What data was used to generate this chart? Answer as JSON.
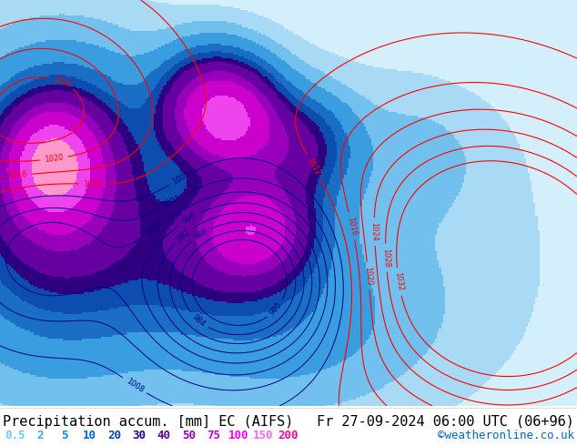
{
  "title_left": "Precipitation accum. [mm] EC (AIFS)",
  "title_right": "Fr 27-09-2024 06:00 UTC (06+96)",
  "credit": "©weatheronline.co.uk",
  "colorbar_values": [
    0.5,
    2,
    5,
    10,
    20,
    30,
    40,
    50,
    75,
    100,
    150,
    200
  ],
  "colorbar_label_colors": [
    "#66ccff",
    "#33aaff",
    "#0088ff",
    "#0066dd",
    "#0044bb",
    "#220099",
    "#660099",
    "#9900bb",
    "#cc00cc",
    "#ff00ff",
    "#ff66ff",
    "#ff00aa"
  ],
  "bg_color": "#ffffff",
  "map_bg": "#c8e8f8",
  "title_fontsize": 11,
  "credit_fontsize": 9,
  "legend_fontsize": 9
}
